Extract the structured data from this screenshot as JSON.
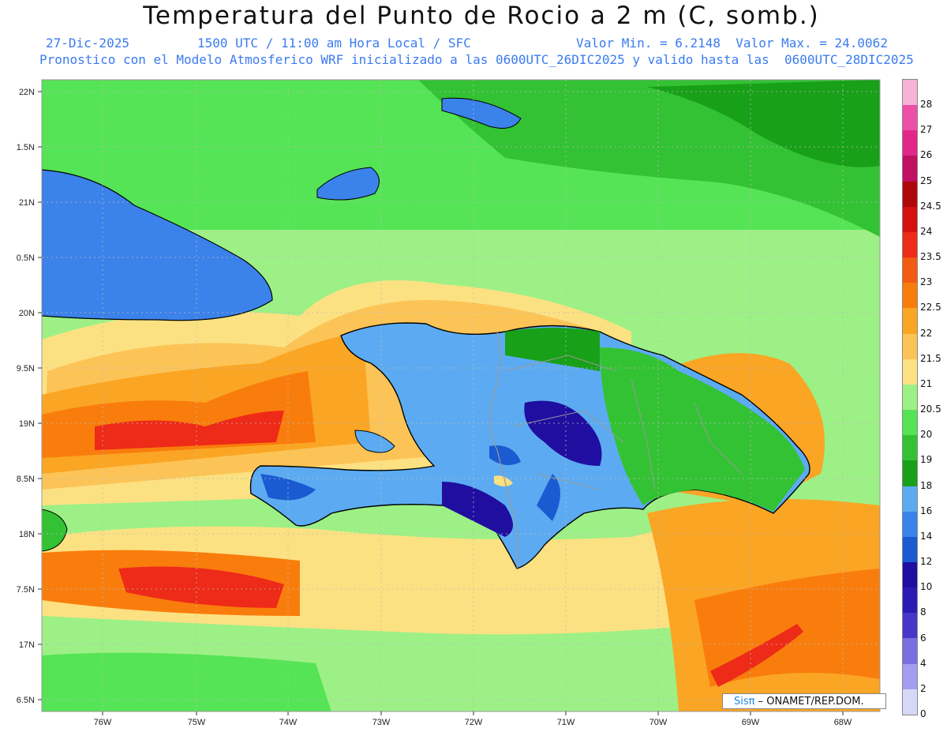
{
  "title": "Temperatura del Punto de Rocio a 2 m (C, somb.)",
  "date": "27-Dic-2025",
  "time": "1500 UTC / 11:00 am Hora Local / SFC",
  "minmax": "Valor Min. = 6.2148  Valor Max. = 24.0062",
  "forecast": "Pronostico con el Modelo Atmosferico WRF inicializado a las 0600UTC_26DIC2025 y valido hasta las  0600UTC_28DIC2025",
  "credit": {
    "brand": "Sisπ",
    "text": " – ONAMET/REP.DOM."
  },
  "lat_labels": [
    "22N",
    "1.5N",
    "21N",
    "0.5N",
    "20N",
    "9.5N",
    "19N",
    "8.5N",
    "18N",
    "7.5N",
    "17N",
    "6.5N"
  ],
  "lon_labels": [
    "76W",
    "75W",
    "74W",
    "73W",
    "72W",
    "71W",
    "70W",
    "69W",
    "68W"
  ],
  "colorbar": [
    {
      "v": "28",
      "c": "#f5b3d6"
    },
    {
      "v": "27",
      "c": "#ee4fa7"
    },
    {
      "v": "26",
      "c": "#e3278a"
    },
    {
      "v": "25",
      "c": "#c01060"
    },
    {
      "v": "24.5",
      "c": "#b00808"
    },
    {
      "v": "24",
      "c": "#d41010"
    },
    {
      "v": "23.5",
      "c": "#ee2a18"
    },
    {
      "v": "23",
      "c": "#f35a12"
    },
    {
      "v": "22.5",
      "c": "#f97d0c"
    },
    {
      "v": "22",
      "c": "#fba524"
    },
    {
      "v": "21.5",
      "c": "#fcc457"
    },
    {
      "v": "21",
      "c": "#fce182"
    },
    {
      "v": "20.5",
      "c": "#9df086"
    },
    {
      "v": "20",
      "c": "#55e455"
    },
    {
      "v": "19",
      "c": "#33c233"
    },
    {
      "v": "18",
      "c": "#18a018"
    },
    {
      "v": "16",
      "c": "#5cabf2"
    },
    {
      "v": "14",
      "c": "#3b82ea"
    },
    {
      "v": "12",
      "c": "#1a5bd1"
    },
    {
      "v": "10",
      "c": "#1f0ea0"
    },
    {
      "v": "8",
      "c": "#2b1bb5"
    },
    {
      "v": "6",
      "c": "#4637c8"
    },
    {
      "v": "4",
      "c": "#7a6ee0"
    },
    {
      "v": "2",
      "c": "#a49df0"
    },
    {
      "v": "0",
      "c": "#d6d8f7"
    }
  ]
}
